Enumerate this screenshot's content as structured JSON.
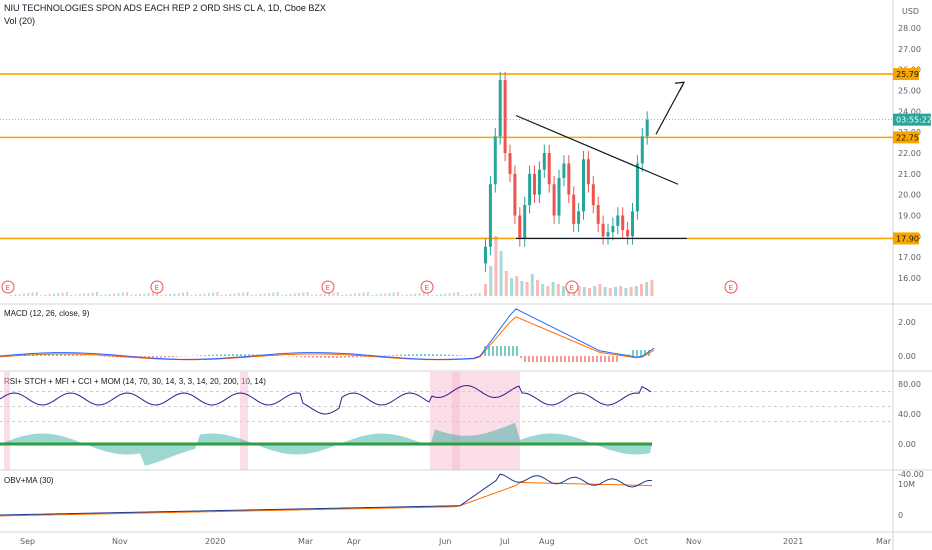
{
  "chart_data": {
    "type": "candlestick",
    "title": "NIU TECHNOLOGIES SPON ADS EACH REP 2 ORD SHS CL A, 1D, Cboe BZX",
    "volume_label": "Vol (20)",
    "currency": "USD",
    "price_ticks": [
      "28.00",
      "27.00",
      "26.00",
      "25.00",
      "24.00",
      "23.00",
      "22.00",
      "21.00",
      "20.00",
      "19.00",
      "18.00",
      "17.00",
      "16.00"
    ],
    "horizontal_levels": [
      25.79,
      22.75,
      17.9
    ],
    "level_labels": [
      "25.79",
      "22.75",
      "17.90"
    ],
    "current_price_label": "03:55:22",
    "current_price": 23.6,
    "triangle": {
      "top_start": 23.8,
      "top_end": 20.5,
      "base": 17.9
    },
    "arrow_target": 25.3,
    "earnings_markers": [
      "E",
      "E",
      "E",
      "E",
      "E",
      "E"
    ],
    "x_ticks": [
      "Sep",
      "Nov",
      "2020",
      "Mar",
      "Apr",
      "Jun",
      "Jul",
      "Aug",
      "Oct",
      "Nov",
      "2021",
      "Mar"
    ],
    "candles_summary": {
      "period": "Jul–Oct 2020",
      "closes": [
        17.5,
        20.5,
        22.8,
        25.5,
        22.0,
        21.0,
        19.0,
        17.9,
        19.5,
        21.0,
        20.0,
        21.2,
        22.0,
        20.5,
        19.0,
        20.8,
        21.5,
        20.0,
        18.6,
        19.2,
        21.7,
        20.5,
        19.5,
        18.6,
        18.0,
        18.2,
        18.5,
        19.0,
        18.3,
        18.0,
        19.2,
        21.5,
        22.8,
        23.6
      ]
    },
    "macd": {
      "label": "MACD (12, 26, close, 9)",
      "ticks": [
        "2.00",
        "0.00"
      ]
    },
    "rsi": {
      "label": "RSI+ STCH + MFI + CCI + MOM (14, 70, 30, 14, 3, 3, 14, 20, 200, 10, 14)",
      "ticks": [
        "80.00",
        "40.00",
        "0.00",
        "-40.00"
      ]
    },
    "obv": {
      "label": "OBV+MA (30)",
      "ticks": [
        "10M",
        "0"
      ]
    }
  },
  "colors": {
    "up": "#26a69a",
    "down": "#ef5350",
    "level": "#f7a600",
    "macd": "#2962ff",
    "signal": "#ff6d00",
    "rsi": "#311b92",
    "obv": "#1e3a8a"
  }
}
